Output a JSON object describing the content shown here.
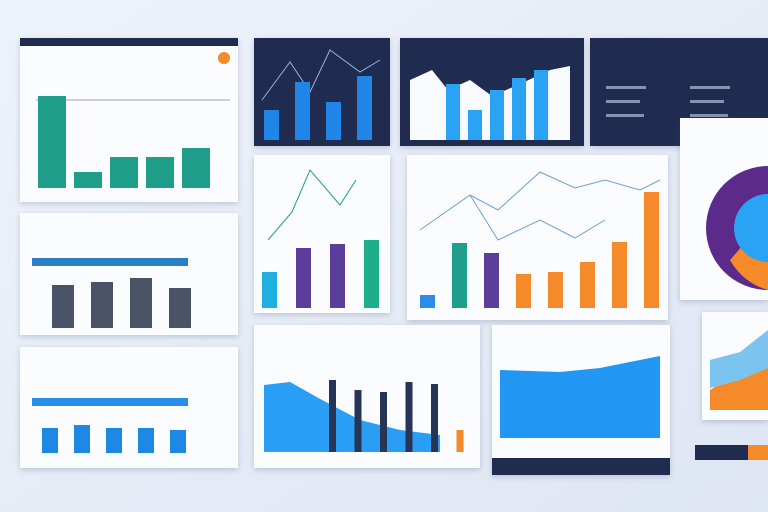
{
  "panels": [
    {
      "type": "bar",
      "color": "#1f9e89",
      "values": [
        92,
        16,
        31,
        31,
        40
      ]
    },
    {
      "type": "bar",
      "color": "#1f86e8",
      "values": [
        30,
        58,
        38,
        64
      ]
    },
    {
      "type": "bar",
      "color": "#2aa3f5",
      "values": [
        56,
        30,
        50,
        62,
        70
      ]
    },
    {
      "type": "bar",
      "color": "#4a5466",
      "values": [
        43,
        46,
        50,
        40
      ]
    },
    {
      "type": "bar",
      "colors": [
        "#1fb0e0",
        "#5b3d9a",
        "#5b3d9a",
        "#1fae8c"
      ],
      "values": [
        36,
        60,
        64,
        68
      ]
    },
    {
      "type": "bar",
      "colors": [
        "#2a8ee8",
        "#1f9e8c",
        "#5b3d9a",
        "#f58a2a",
        "#f58a2a",
        "#f58a2a",
        "#f58a2a",
        "#f58a2a"
      ],
      "values": [
        13,
        65,
        55,
        34,
        36,
        46,
        66,
        116
      ]
    },
    {
      "type": "bar",
      "color": "#1e88e5",
      "values": [
        25,
        28,
        25,
        25,
        23
      ]
    },
    {
      "type": "bar",
      "colors": [
        "#263456",
        "#263456",
        "#263456",
        "#263456",
        "#263456",
        "#f58a2a"
      ],
      "values": [
        72,
        62,
        60,
        70,
        68,
        22
      ]
    }
  ]
}
